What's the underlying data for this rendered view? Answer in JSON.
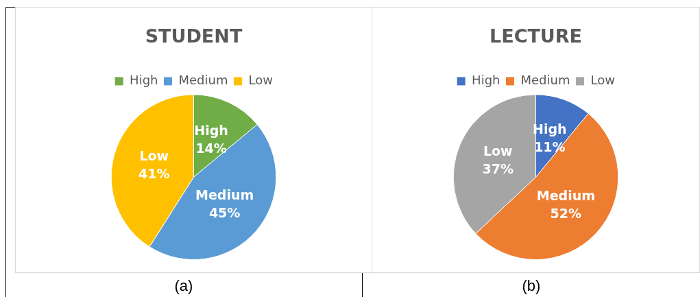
{
  "chart_data": [
    {
      "type": "pie",
      "title": "STUDENT",
      "categories": [
        "High",
        "Medium",
        "Low"
      ],
      "values": [
        14,
        45,
        41
      ],
      "colors": [
        "#70ad47",
        "#5b9bd5",
        "#ffc000"
      ],
      "value_labels": [
        "14%",
        "45%",
        "41%"
      ],
      "legend": "top",
      "annotations": [
        "(a)"
      ]
    },
    {
      "type": "pie",
      "title": "LECTURE",
      "categories": [
        "High",
        "Medium",
        "Low"
      ],
      "values": [
        11,
        52,
        37
      ],
      "colors": [
        "#4472c4",
        "#ed7d31",
        "#a5a5a5"
      ],
      "value_labels": [
        "11%",
        "52%",
        "37%"
      ],
      "legend": "top",
      "annotations": [
        "(b)"
      ]
    }
  ]
}
